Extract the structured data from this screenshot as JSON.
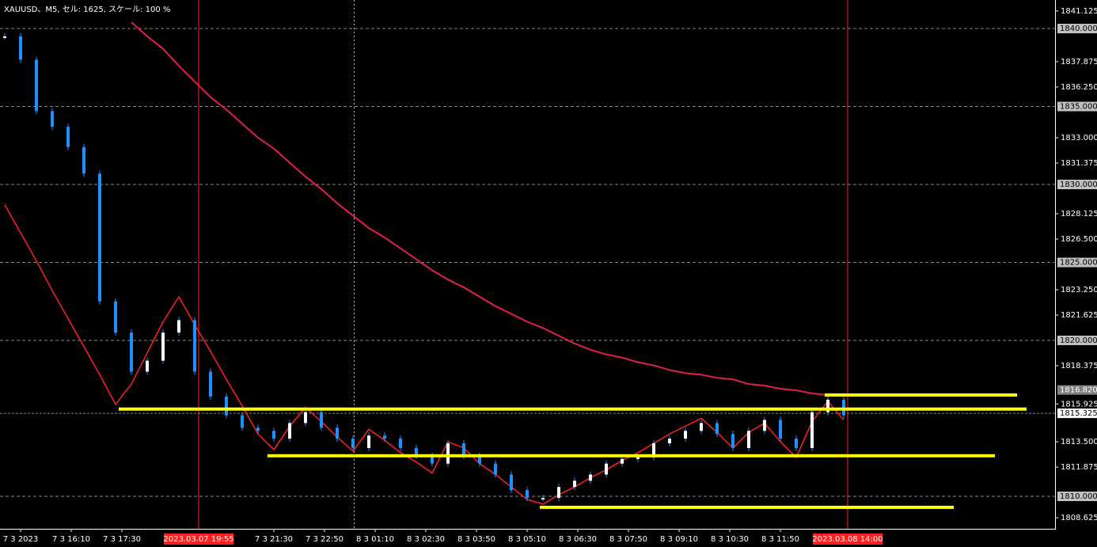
{
  "chart_data": {
    "type": "candle-line",
    "title": "XAUUSD、M5, セル: 1625, スケール: 100 %",
    "ylim": [
      1807.92,
      1841.83
    ],
    "yticks": [
      {
        "value": 1841.125,
        "label": "1841.125"
      },
      {
        "value": 1837.875,
        "label": "1837.875"
      },
      {
        "value": 1836.25,
        "label": "1836.250"
      },
      {
        "value": 1833,
        "label": "1833.000"
      },
      {
        "value": 1831.375,
        "label": "1831.375"
      },
      {
        "value": 1828.125,
        "label": "1828.125"
      },
      {
        "value": 1826.5,
        "label": "1826.500"
      },
      {
        "value": 1823.25,
        "label": "1823.250"
      },
      {
        "value": 1821.625,
        "label": "1821.625"
      },
      {
        "value": 1818.375,
        "label": "1818.375"
      },
      {
        "value": 1815.925,
        "label": "1815.925"
      },
      {
        "value": 1813.5,
        "label": "1813.500"
      },
      {
        "value": 1811.875,
        "label": "1811.875"
      },
      {
        "value": 1808.625,
        "label": "1808.625"
      }
    ],
    "levels": [
      {
        "value": 1840,
        "label": "1840.000"
      },
      {
        "value": 1835,
        "label": "1835.000"
      },
      {
        "value": 1830,
        "label": "1830.000"
      },
      {
        "value": 1825,
        "label": "1825.000"
      },
      {
        "value": 1820,
        "label": "1820.000"
      },
      {
        "value": 1810,
        "label": "1810.000"
      }
    ],
    "highlight_price": {
      "value": 1816.82,
      "label": "1816.820"
    },
    "current_price": {
      "value": 1815.325,
      "label": "1815.325"
    },
    "x_labels": [
      "7 3 2023",
      "7 3 16:10",
      "7 3 17:30",
      null,
      null,
      "7 3 21:30",
      "7 3 22:50",
      "8 3 01:10",
      "8 3 02:30",
      "8 3 03:50",
      "8 3 05:10",
      "8 3 06:30",
      "8 3 07:50",
      "8 3 09:10",
      "8 3 10:30",
      "8 3 11:50"
    ],
    "time_markers": [
      "2023.03.07 19:55",
      "2023.03.08 14:00"
    ],
    "series": [
      {
        "name": "price",
        "color": "#1e90ff",
        "values": [
          1839.5,
          1838.0,
          1834.7,
          1833.7,
          1832.4,
          1830.7,
          1822.5,
          1820.5,
          1818.0,
          1818.7,
          1820.5,
          1821.3,
          1818.0,
          1816.4,
          1815.2,
          1814.4,
          1814.2,
          1813.7,
          1814.7,
          1815.4,
          1814.4,
          1813.7,
          1813.1,
          1813.9,
          1813.7,
          1813.1,
          1812.6,
          1812.1,
          1813.4,
          1812.6,
          1812.1,
          1811.4,
          1810.4,
          1809.9,
          1809.9,
          1810.6,
          1811.0,
          1811.4,
          1812.1,
          1812.4,
          1812.5,
          1813.4,
          1813.7,
          1814.2,
          1814.7,
          1814.0,
          1813.1,
          1814.2,
          1814.9,
          1813.7,
          1813.1,
          1815.4,
          1816.2,
          1815.2
        ]
      },
      {
        "name": "zigzag",
        "color": "#ff2020",
        "values": [
          1828.7,
          1826.9,
          1825.1,
          1823.2,
          1821.4,
          1819.6,
          1817.8,
          1815.9,
          1817.2,
          1819.2,
          1821.2,
          1822.8,
          1821.0,
          1819.3,
          1817.5,
          1815.8,
          1814.0,
          1813.0,
          1814.5,
          1815.7,
          1814.8,
          1813.8,
          1812.9,
          1814.3,
          1813.6,
          1812.8,
          1812.2,
          1811.5,
          1813.5,
          1813.1,
          1812.1,
          1811.4,
          1810.6,
          1809.8,
          1809.5,
          1810.1,
          1810.6,
          1811.2,
          1811.7,
          1812.3,
          1812.8,
          1813.4,
          1814.0,
          1814.5,
          1815.0,
          1814.1,
          1813.1,
          1814.1,
          1814.7,
          1813.5,
          1812.5,
          1814.8,
          1816.1,
          1814.9
        ]
      },
      {
        "name": "moving-average",
        "color": "#e0204a",
        "values": [
          null,
          null,
          null,
          null,
          null,
          null,
          null,
          null,
          1840.4,
          1839.5,
          1838.7,
          1837.6,
          1836.6,
          1835.6,
          1834.8,
          1833.9,
          1833.0,
          1832.3,
          1831.4,
          1830.5,
          1829.7,
          1828.8,
          1828.0,
          1827.2,
          1826.6,
          1825.9,
          1825.2,
          1824.5,
          1823.9,
          1823.4,
          1822.8,
          1822.2,
          1821.7,
          1821.2,
          1820.8,
          1820.3,
          1819.8,
          1819.4,
          1819.1,
          1818.9,
          1818.6,
          1818.4,
          1818.1,
          1817.9,
          1817.8,
          1817.6,
          1817.5,
          1817.2,
          1817.1,
          1816.9,
          1816.8,
          1816.6,
          1816.5,
          1816.5
        ]
      }
    ],
    "support_levels": {
      "color": "#ffff00",
      "values": [
        1815.6,
        1812.6,
        1809.3,
        1816.5
      ]
    }
  }
}
